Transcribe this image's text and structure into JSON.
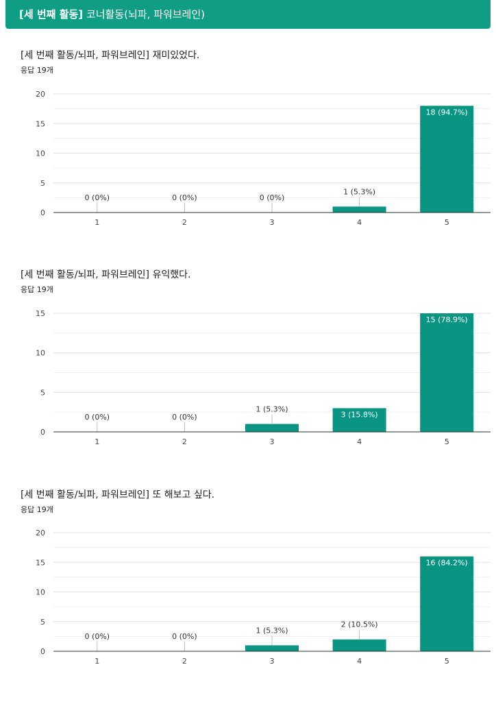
{
  "header": {
    "bold_part": "[세 번째 활동]",
    "rest": " 코너활동(뇌파, 파워브레인)"
  },
  "colors": {
    "accent": "#0f9d84",
    "bar": "#0a9582"
  },
  "questions": [
    {
      "title": "[세 번째 활동/뇌파, 파워브레인] 재미있었다.",
      "responses": "응답 19개"
    },
    {
      "title": "[세 번째 활동/뇌파, 파워브레인] 유익했다.",
      "responses": "응답 19개"
    },
    {
      "title": "[세 번째 활동/뇌파, 파워브레인] 또 해보고 싶다.",
      "responses": "응답 19개"
    }
  ],
  "chart_data": [
    {
      "type": "bar",
      "categories": [
        "1",
        "2",
        "3",
        "4",
        "5"
      ],
      "values": [
        0,
        0,
        0,
        1,
        18
      ],
      "labels": [
        "0 (0%)",
        "0 (0%)",
        "0 (0%)",
        "1 (5.3%)",
        "18 (94.7%)"
      ],
      "ylim": [
        0,
        20
      ],
      "yticks": [
        0,
        5,
        10,
        15,
        20
      ],
      "grid": true
    },
    {
      "type": "bar",
      "categories": [
        "1",
        "2",
        "3",
        "4",
        "5"
      ],
      "values": [
        0,
        0,
        1,
        3,
        15
      ],
      "labels": [
        "0 (0%)",
        "0 (0%)",
        "1 (5.3%)",
        "3 (15.8%)",
        "15 (78.9%)"
      ],
      "ylim": [
        0,
        15
      ],
      "yticks": [
        0,
        5,
        10,
        15
      ],
      "grid": true
    },
    {
      "type": "bar",
      "categories": [
        "1",
        "2",
        "3",
        "4",
        "5"
      ],
      "values": [
        0,
        0,
        1,
        2,
        16
      ],
      "labels": [
        "0 (0%)",
        "0 (0%)",
        "1 (5.3%)",
        "2 (10.5%)",
        "16 (84.2%)"
      ],
      "ylim": [
        0,
        20
      ],
      "yticks": [
        0,
        5,
        10,
        15,
        20
      ],
      "grid": true
    }
  ]
}
